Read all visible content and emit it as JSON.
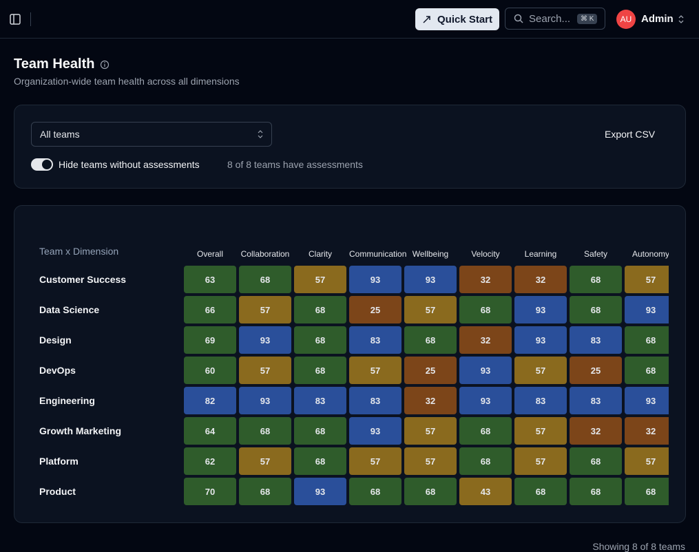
{
  "header": {
    "quick_start": "Quick Start",
    "search": "Search...",
    "shortcut": "⌘ K",
    "avatar": "AU",
    "user": "Admin"
  },
  "page": {
    "title": "Team Health",
    "subtitle": "Organization-wide team health across all dimensions"
  },
  "filters": {
    "select": "All teams",
    "export": "Export CSV",
    "toggle_label": "Hide teams without assessments",
    "status": "8 of 8 teams have assessments"
  },
  "table": {
    "corner": "Team x Dimension",
    "columns": [
      "Overall",
      "Collaboration",
      "Clarity",
      "Communication",
      "Wellbeing",
      "Velocity",
      "Learning",
      "Safety",
      "Autonomy"
    ],
    "rows": [
      {
        "team": "Customer Success",
        "values": [
          63,
          68,
          57,
          93,
          93,
          32,
          32,
          68,
          57
        ]
      },
      {
        "team": "Data Science",
        "values": [
          66,
          57,
          68,
          25,
          57,
          68,
          93,
          68,
          93
        ]
      },
      {
        "team": "Design",
        "values": [
          69,
          93,
          68,
          83,
          68,
          32,
          93,
          83,
          68
        ]
      },
      {
        "team": "DevOps",
        "values": [
          60,
          57,
          68,
          57,
          25,
          93,
          57,
          25,
          68
        ]
      },
      {
        "team": "Engineering",
        "values": [
          82,
          93,
          83,
          83,
          32,
          93,
          83,
          83,
          93
        ]
      },
      {
        "team": "Growth Marketing",
        "values": [
          64,
          68,
          68,
          93,
          57,
          68,
          57,
          32,
          32
        ]
      },
      {
        "team": "Platform",
        "values": [
          62,
          57,
          68,
          57,
          57,
          68,
          57,
          68,
          57
        ]
      },
      {
        "team": "Product",
        "values": [
          70,
          68,
          93,
          68,
          68,
          43,
          68,
          68,
          68
        ]
      }
    ]
  },
  "footer": "Showing 8 of 8 teams"
}
